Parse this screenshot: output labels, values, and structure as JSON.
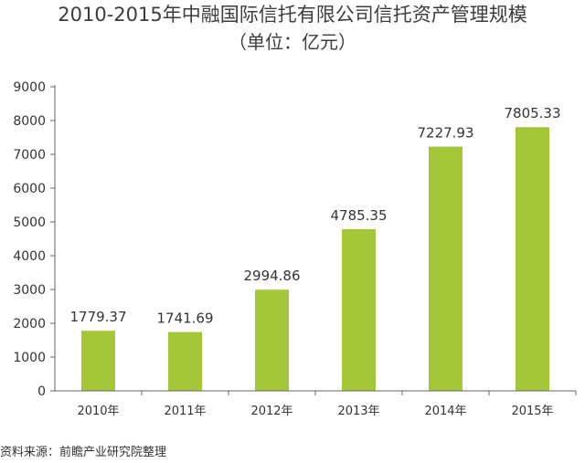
{
  "chart_data": {
    "type": "bar",
    "title": "2010-2015年中融国际信托有限公司信托资产管理规模",
    "subtitle": "（单位：亿元）",
    "categories": [
      "2010年",
      "2011年",
      "2012年",
      "2013年",
      "2014年",
      "2015年"
    ],
    "values": [
      1779.37,
      1741.69,
      2994.86,
      4785.35,
      7227.93,
      7805.33
    ],
    "value_labels": [
      "1779.37",
      "1741.69",
      "2994.86",
      "4785.35",
      "7227.93",
      "7805.33"
    ],
    "yticks": [
      "0",
      "1000",
      "2000",
      "3000",
      "4000",
      "5000",
      "6000",
      "7000",
      "8000",
      "9000"
    ],
    "ylim": [
      0,
      9000
    ],
    "xlabel": "",
    "ylabel": "",
    "grid": false,
    "bar_color": "#a4c639",
    "axis_color": "#666666"
  },
  "source": "资料来源：前瞻产业研究院整理"
}
